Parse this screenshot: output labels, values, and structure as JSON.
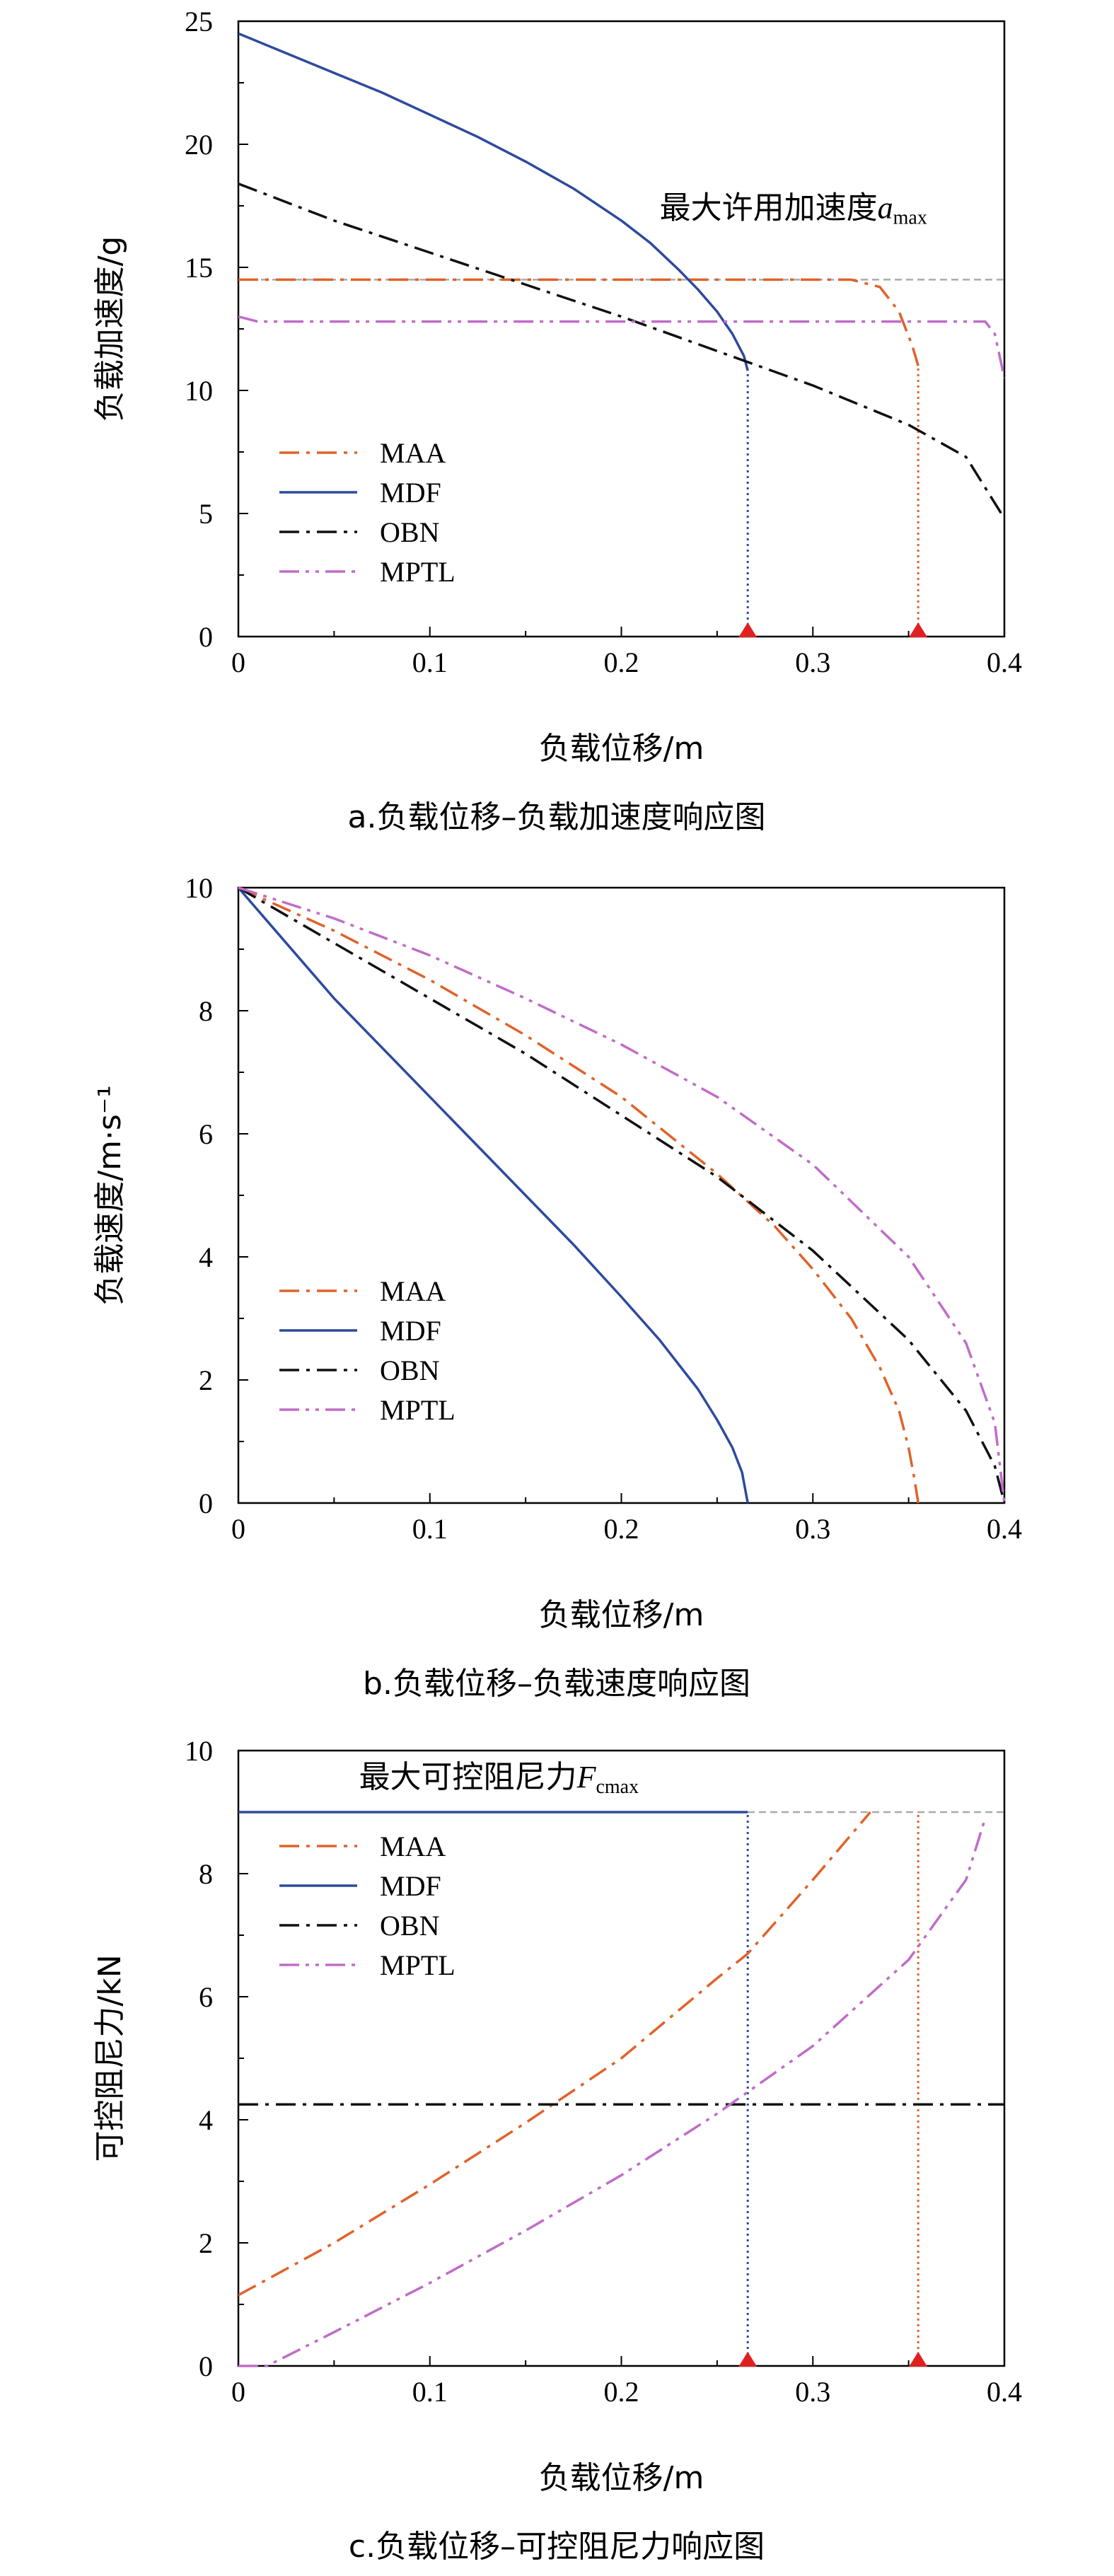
{
  "colors": {
    "MAA": "#e0622a",
    "MDF": "#2e4a9e",
    "OBN": "#111111",
    "MPTL": "#c06cc8",
    "limit_line": "#aaaaaa",
    "marker": "#e02020"
  },
  "chart_data": [
    {
      "type": "line",
      "panel": "a",
      "caption": "a.负载位移–负载加速度响应图",
      "xlabel": "负载位移/m",
      "ylabel": "负载加速度/g",
      "xlim": [
        0,
        0.4
      ],
      "ylim": [
        0,
        25
      ],
      "xticks": [
        0,
        0.1,
        0.2,
        0.3,
        0.4
      ],
      "xtick_labels": [
        "0",
        "0.1",
        "0.2",
        "0.3",
        "0.4"
      ],
      "yticks": [
        0,
        5,
        10,
        15,
        20,
        25
      ],
      "ytick_labels": [
        "0",
        "5",
        "10",
        "15",
        "20",
        "25"
      ],
      "legend_position": "lower-left",
      "annotation": {
        "text": "最大许用加速度",
        "symbol": "a",
        "subscript": "max",
        "at": [
          0.22,
          17
        ]
      },
      "reference_lines": [
        {
          "type": "horizontal",
          "y": 14.5,
          "color": "limit_line"
        }
      ],
      "series": [
        {
          "name": "MAA",
          "color": "MAA",
          "dash": "dashdot",
          "x": [
            0,
            0.05,
            0.1,
            0.15,
            0.2,
            0.25,
            0.3,
            0.32,
            0.335,
            0.345,
            0.352,
            0.355
          ],
          "y": [
            14.5,
            14.5,
            14.5,
            14.5,
            14.5,
            14.5,
            14.5,
            14.5,
            14.2,
            13.2,
            11.8,
            11.0
          ]
        },
        {
          "name": "MDF",
          "color": "MDF",
          "dash": "solid",
          "x": [
            0,
            0.025,
            0.05,
            0.075,
            0.1,
            0.125,
            0.15,
            0.175,
            0.2,
            0.215,
            0.23,
            0.24,
            0.25,
            0.258,
            0.264,
            0.266
          ],
          "y": [
            24.5,
            23.7,
            22.9,
            22.1,
            21.2,
            20.3,
            19.3,
            18.2,
            16.9,
            16.0,
            14.9,
            14.1,
            13.2,
            12.3,
            11.4,
            10.8
          ]
        },
        {
          "name": "OBN",
          "color": "OBN",
          "dash": "dashdot",
          "x": [
            0,
            0.05,
            0.1,
            0.15,
            0.2,
            0.25,
            0.3,
            0.35,
            0.38,
            0.4
          ],
          "y": [
            18.4,
            16.9,
            15.6,
            14.3,
            13.0,
            11.6,
            10.2,
            8.6,
            7.3,
            4.8
          ]
        },
        {
          "name": "MPTL",
          "color": "MPTL",
          "dash": "dashdotdot",
          "x": [
            0,
            0.01,
            0.05,
            0.1,
            0.2,
            0.3,
            0.39,
            0.395,
            0.4
          ],
          "y": [
            13.0,
            12.8,
            12.8,
            12.8,
            12.8,
            12.8,
            12.8,
            12.3,
            10.5
          ]
        }
      ],
      "markers": [
        {
          "x": 0.266,
          "y": 0,
          "shape": "triangle",
          "color": "marker"
        },
        {
          "x": 0.355,
          "y": 0,
          "shape": "triangle",
          "color": "marker"
        }
      ],
      "drop_lines": [
        {
          "x": 0.266,
          "from": 0,
          "to": 10.8,
          "color": "MDF"
        },
        {
          "x": 0.355,
          "from": 0,
          "to": 11.0,
          "color": "MAA"
        }
      ]
    },
    {
      "type": "line",
      "panel": "b",
      "caption": "b.负载位移–负载速度响应图",
      "xlabel": "负载位移/m",
      "ylabel": "负载速度/m·s⁻¹",
      "xlim": [
        0,
        0.4
      ],
      "ylim": [
        0,
        10
      ],
      "xticks": [
        0,
        0.1,
        0.2,
        0.3,
        0.4
      ],
      "xtick_labels": [
        "0",
        "0.1",
        "0.2",
        "0.3",
        "0.4"
      ],
      "yticks": [
        0,
        2,
        4,
        6,
        8,
        10
      ],
      "ytick_labels": [
        "0",
        "2",
        "4",
        "6",
        "8",
        "10"
      ],
      "legend_position": "lower-left",
      "series": [
        {
          "name": "MAA",
          "color": "MAA",
          "dash": "dashdot",
          "x": [
            0,
            0.05,
            0.1,
            0.15,
            0.2,
            0.25,
            0.28,
            0.3,
            0.32,
            0.335,
            0.345,
            0.35,
            0.353,
            0.355
          ],
          "y": [
            10,
            9.3,
            8.5,
            7.6,
            6.6,
            5.35,
            4.5,
            3.8,
            3.0,
            2.2,
            1.5,
            0.9,
            0.4,
            0
          ]
        },
        {
          "name": "MDF",
          "color": "MDF",
          "dash": "solid",
          "x": [
            0,
            0.025,
            0.05,
            0.075,
            0.1,
            0.125,
            0.15,
            0.175,
            0.2,
            0.22,
            0.24,
            0.25,
            0.258,
            0.263,
            0.266
          ],
          "y": [
            10,
            9.1,
            8.2,
            7.4,
            6.6,
            5.8,
            5.0,
            4.2,
            3.35,
            2.65,
            1.85,
            1.35,
            0.9,
            0.5,
            0
          ]
        },
        {
          "name": "OBN",
          "color": "OBN",
          "dash": "dashdot",
          "x": [
            0,
            0.05,
            0.1,
            0.15,
            0.2,
            0.25,
            0.3,
            0.35,
            0.38,
            0.395,
            0.4
          ],
          "y": [
            10,
            9.1,
            8.2,
            7.3,
            6.3,
            5.3,
            4.1,
            2.65,
            1.5,
            0.6,
            0
          ]
        },
        {
          "name": "MPTL",
          "color": "MPTL",
          "dash": "dashdotdot",
          "x": [
            0,
            0.05,
            0.1,
            0.15,
            0.2,
            0.25,
            0.3,
            0.35,
            0.38,
            0.395,
            0.4
          ],
          "y": [
            10,
            9.5,
            8.9,
            8.2,
            7.45,
            6.6,
            5.5,
            4.0,
            2.6,
            1.3,
            0
          ]
        }
      ]
    },
    {
      "type": "line",
      "panel": "c",
      "caption": "c.负载位移–可控阻尼力响应图",
      "xlabel": "负载位移/m",
      "ylabel": "可控阻尼力/kN",
      "xlim": [
        0,
        0.4
      ],
      "ylim": [
        0,
        10
      ],
      "xticks": [
        0,
        0.1,
        0.2,
        0.3,
        0.4
      ],
      "xtick_labels": [
        "0",
        "0.1",
        "0.2",
        "0.3",
        "0.4"
      ],
      "yticks": [
        0,
        2,
        4,
        6,
        8,
        10
      ],
      "ytick_labels": [
        "0",
        "2",
        "4",
        "6",
        "8",
        "10"
      ],
      "legend_position": "top-left",
      "annotation": {
        "text": "最大可控阻尼力",
        "symbol": "F",
        "subscript": "cmax",
        "at": [
          0.063,
          9.4
        ]
      },
      "reference_lines": [
        {
          "type": "horizontal",
          "y": 9.0,
          "color": "limit_line"
        }
      ],
      "series": [
        {
          "name": "MAA",
          "color": "MAA",
          "dash": "dashdot",
          "x": [
            0,
            0.05,
            0.1,
            0.15,
            0.2,
            0.25,
            0.266,
            0.3,
            0.33
          ],
          "y": [
            1.15,
            2.0,
            2.95,
            3.95,
            5.0,
            6.3,
            6.7,
            7.9,
            9.0
          ]
        },
        {
          "name": "MDF",
          "color": "MDF",
          "dash": "solid",
          "x": [
            0,
            0.266
          ],
          "y": [
            9.0,
            9.0
          ]
        },
        {
          "name": "OBN",
          "color": "OBN",
          "dash": "dashdot",
          "x": [
            0,
            0.4
          ],
          "y": [
            4.25,
            4.25
          ]
        },
        {
          "name": "MPTL",
          "color": "MPTL",
          "dash": "dashdotdot",
          "x": [
            0,
            0.015,
            0.05,
            0.1,
            0.15,
            0.2,
            0.25,
            0.3,
            0.35,
            0.38,
            0.39
          ],
          "y": [
            0,
            0,
            0.55,
            1.35,
            2.2,
            3.1,
            4.1,
            5.2,
            6.6,
            7.9,
            8.9
          ]
        }
      ],
      "markers": [
        {
          "x": 0.266,
          "y": 0,
          "shape": "triangle",
          "color": "marker"
        },
        {
          "x": 0.355,
          "y": 0,
          "shape": "triangle",
          "color": "marker"
        }
      ],
      "drop_lines": [
        {
          "x": 0.266,
          "from": 0,
          "to": 9.0,
          "color": "MDF"
        },
        {
          "x": 0.355,
          "from": 0,
          "to": 9.0,
          "color": "MAA"
        }
      ]
    }
  ]
}
